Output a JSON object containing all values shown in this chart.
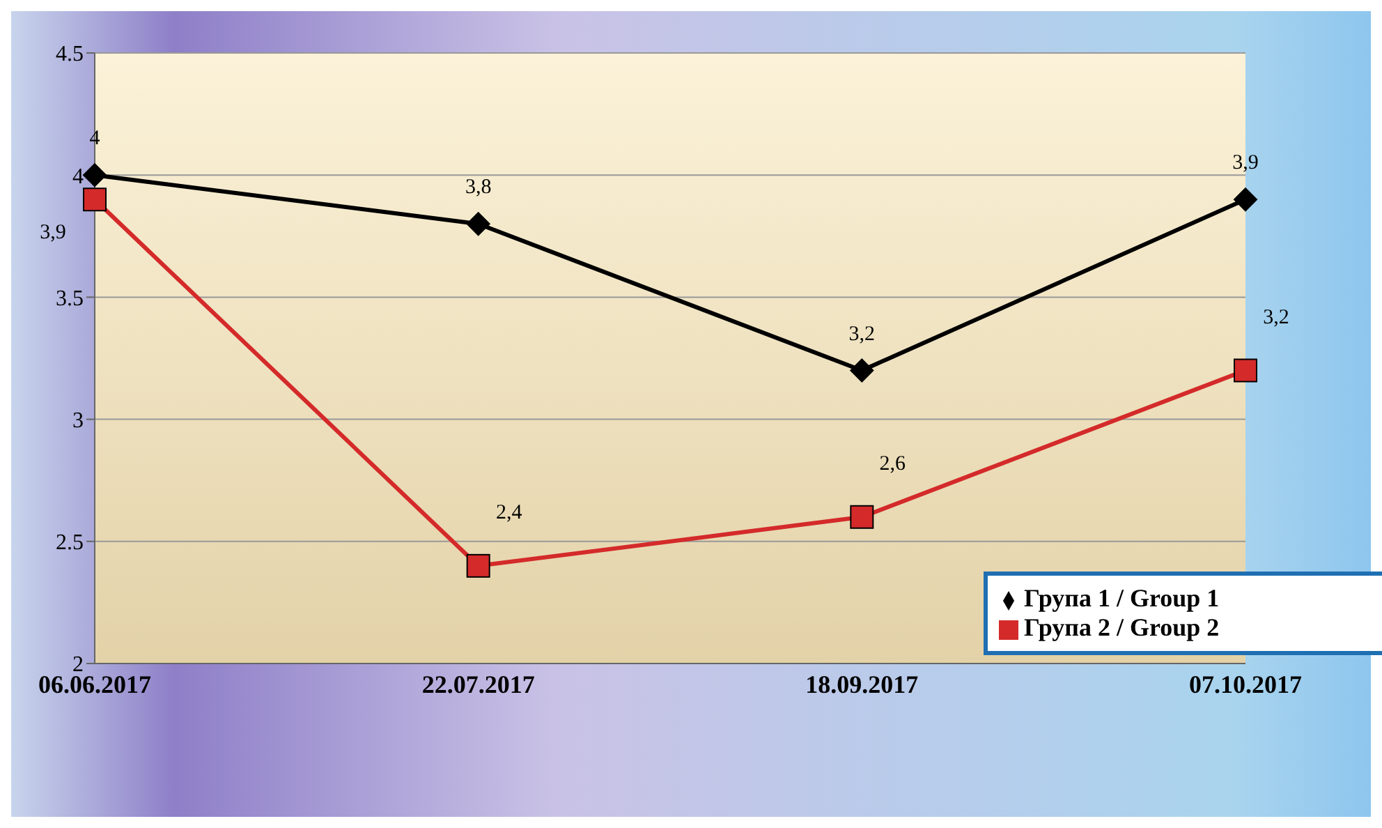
{
  "chart_data": {
    "type": "line",
    "categories": [
      "06.06.2017",
      "22.07.2017",
      "18.09.2017",
      "07.10.2017"
    ],
    "series": [
      {
        "name": "Група 1 / Group 1",
        "color": "#000000",
        "marker": "diamond",
        "values": [
          4,
          3.8,
          3.2,
          3.9
        ],
        "value_labels": [
          "4",
          "3,8",
          "3,2",
          "3,9"
        ]
      },
      {
        "name": "Група 2 / Group 2",
        "color": "#d42a2a",
        "marker": "square",
        "values": [
          3.9,
          2.4,
          2.6,
          3.2
        ],
        "value_labels": [
          "3,9",
          "2,4",
          "2,6",
          "3,2"
        ]
      }
    ],
    "ylim": [
      2,
      4.5
    ],
    "yticks": [
      2,
      2.5,
      3,
      3.5,
      4,
      4.5
    ],
    "grid": "y",
    "legend": "right"
  }
}
